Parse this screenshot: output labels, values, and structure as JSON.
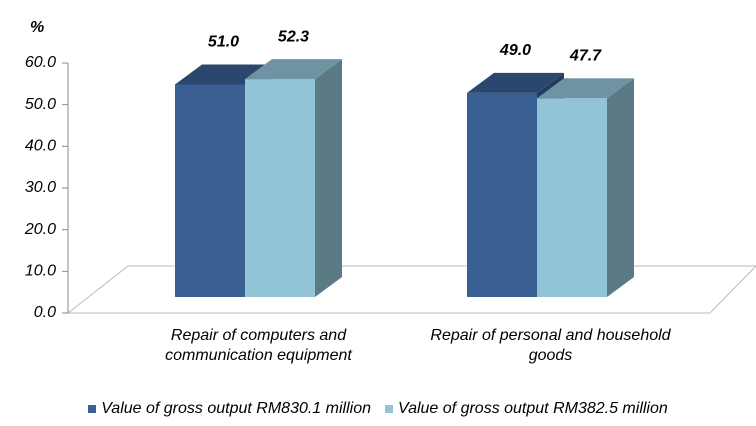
{
  "chart_data": {
    "type": "bar3d",
    "y_axis_label": "%",
    "categories": [
      "Repair of computers and communication equipment",
      "Repair of personal and household goods"
    ],
    "series": [
      {
        "name": "Value of gross output RM830.1 million",
        "color": "#3a5f93",
        "values": [
          51.0,
          49.0
        ],
        "value_labels": [
          "51.0",
          "49.0"
        ]
      },
      {
        "name": "Value of gross output RM382.5 million",
        "color": "#92c4d8",
        "values": [
          52.3,
          47.7
        ],
        "value_labels": [
          "52.3",
          "47.7"
        ]
      }
    ],
    "ylim": [
      0,
      60
    ],
    "yticks": [
      {
        "value": 0,
        "label": "0.0"
      },
      {
        "value": 10,
        "label": "10.0"
      },
      {
        "value": 20,
        "label": "20.0"
      },
      {
        "value": 30,
        "label": "30.0"
      },
      {
        "value": 40,
        "label": "40.0"
      },
      {
        "value": 50,
        "label": "50.0"
      },
      {
        "value": 60,
        "label": "60.0"
      }
    ],
    "legend": "bottom"
  }
}
